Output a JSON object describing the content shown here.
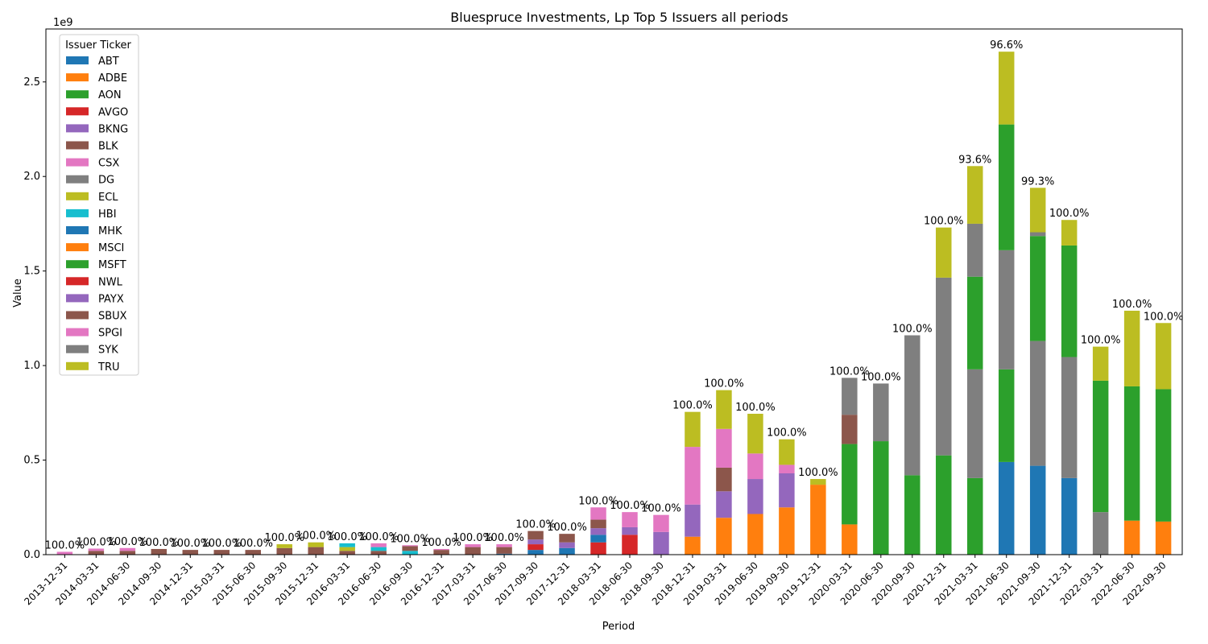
{
  "chart_data": {
    "type": "bar",
    "stacked": true,
    "title": "Bluespruce Investments, Lp Top 5 Issuers all periods",
    "xlabel": "Period",
    "ylabel": "Value",
    "y_multiplier_label": "1e9",
    "ylim": [
      0,
      2.78
    ],
    "y_unit": "1e9",
    "y_ticks": [
      "0.0",
      "0.5",
      "1.0",
      "1.5",
      "2.0",
      "2.5"
    ],
    "y_tick_values": [
      0,
      0.5,
      1.0,
      1.5,
      2.0,
      2.5
    ],
    "legend_title": "Issuer Ticker",
    "legend_position": "upper-left",
    "grid": false,
    "series_names": [
      "ABT",
      "ADBE",
      "AON",
      "AVGO",
      "BKNG",
      "BLK",
      "CSX",
      "DG",
      "ECL",
      "HBI",
      "MHK",
      "MSCI",
      "MSFT",
      "NWL",
      "PAYX",
      "SBUX",
      "SPGI",
      "SYK",
      "TRU"
    ],
    "colors": [
      "#1f77b4",
      "#ff7f0e",
      "#2ca02c",
      "#d62728",
      "#9467bd",
      "#8c564b",
      "#e377c2",
      "#7f7f7f",
      "#bcbd22",
      "#17becf",
      "#1f77b4",
      "#ff7f0e",
      "#2ca02c",
      "#d62728",
      "#9467bd",
      "#8c564b",
      "#e377c2",
      "#7f7f7f",
      "#bcbd22"
    ],
    "categories": [
      "2013-12-31",
      "2014-03-31",
      "2014-06-30",
      "2014-09-30",
      "2014-12-31",
      "2015-03-31",
      "2015-06-30",
      "2015-09-30",
      "2015-12-31",
      "2016-03-31",
      "2016-06-30",
      "2016-09-30",
      "2016-12-31",
      "2017-03-31",
      "2017-06-30",
      "2017-09-30",
      "2017-12-31",
      "2018-03-31",
      "2018-06-30",
      "2018-09-30",
      "2018-12-31",
      "2019-03-31",
      "2019-06-30",
      "2019-09-30",
      "2019-12-31",
      "2020-03-31",
      "2020-06-30",
      "2020-09-30",
      "2020-12-31",
      "2021-03-31",
      "2021-06-30",
      "2021-09-30",
      "2021-12-31",
      "2022-03-31",
      "2022-06-30",
      "2022-09-30"
    ],
    "bar_labels": [
      "100.0%",
      "100.0%",
      "100.0%",
      "100.0%",
      "100.0%",
      "100.0%",
      "100.0%",
      "100.0%",
      "100.0%",
      "100.0%",
      "100.0%",
      "100.0%",
      "100.0%",
      "100.0%",
      "100.0%",
      "100.0%",
      "100.0%",
      "100.0%",
      "100.0%",
      "100.0%",
      "100.0%",
      "100.0%",
      "100.0%",
      "100.0%",
      "100.0%",
      "100.0%",
      "100.0%",
      "100.0%",
      "100.0%",
      "93.6%",
      "96.6%",
      "99.3%",
      "100.0%",
      "100.0%",
      "100.0%",
      "100.0%"
    ],
    "stacks": [
      [
        [
          "CSX",
          0.015
        ]
      ],
      [
        [
          "BLK",
          0.02
        ],
        [
          "CSX",
          0.012
        ]
      ],
      [
        [
          "BLK",
          0.02
        ],
        [
          "CSX",
          0.015
        ]
      ],
      [
        [
          "BLK",
          0.03
        ]
      ],
      [
        [
          "BLK",
          0.025
        ]
      ],
      [
        [
          "BLK",
          0.025
        ]
      ],
      [
        [
          "BLK",
          0.025
        ]
      ],
      [
        [
          "BLK",
          0.035
        ],
        [
          "ECL",
          0.02
        ]
      ],
      [
        [
          "BLK",
          0.04
        ],
        [
          "ECL",
          0.025
        ]
      ],
      [
        [
          "BLK",
          0.02
        ],
        [
          "ECL",
          0.02
        ],
        [
          "HBI",
          0.02
        ]
      ],
      [
        [
          "BLK",
          0.02
        ],
        [
          "HBI",
          0.02
        ],
        [
          "CSX",
          0.02
        ]
      ],
      [
        [
          "HBI",
          0.02
        ],
        [
          "BLK",
          0.025
        ],
        [
          "CSX",
          0.005
        ]
      ],
      [
        [
          "BLK",
          0.025
        ],
        [
          "CSX",
          0.005
        ]
      ],
      [
        [
          "BLK",
          0.04
        ],
        [
          "CSX",
          0.015
        ]
      ],
      [
        [
          "ABT",
          0.005
        ],
        [
          "BLK",
          0.035
        ],
        [
          "CSX",
          0.015
        ]
      ],
      [
        [
          "ABT",
          0.025
        ],
        [
          "AVGO",
          0.03
        ],
        [
          "BKNG",
          0.025
        ],
        [
          "SBUX",
          0.045
        ]
      ],
      [
        [
          "ABT",
          0.035
        ],
        [
          "BKNG",
          0.03
        ],
        [
          "SBUX",
          0.045
        ]
      ],
      [
        [
          "NWL",
          0.065
        ],
        [
          "MHK",
          0.04
        ],
        [
          "PAYX",
          0.035
        ],
        [
          "SBUX",
          0.045
        ],
        [
          "SPGI",
          0.065
        ]
      ],
      [
        [
          "NWL",
          0.105
        ],
        [
          "PAYX",
          0.04
        ],
        [
          "SPGI",
          0.08
        ]
      ],
      [
        [
          "PAYX",
          0.12
        ],
        [
          "SPGI",
          0.09
        ]
      ],
      [
        [
          "MSCI",
          0.095
        ],
        [
          "PAYX",
          0.17
        ],
        [
          "SPGI",
          0.305
        ],
        [
          "TRU",
          0.185
        ]
      ],
      [
        [
          "MSCI",
          0.195
        ],
        [
          "PAYX",
          0.14
        ],
        [
          "SBUX",
          0.125
        ],
        [
          "SPGI",
          0.205
        ],
        [
          "TRU",
          0.205
        ]
      ],
      [
        [
          "MSCI",
          0.215
        ],
        [
          "PAYX",
          0.185
        ],
        [
          "SPGI",
          0.135
        ],
        [
          "TRU",
          0.21
        ]
      ],
      [
        [
          "MSCI",
          0.25
        ],
        [
          "PAYX",
          0.18
        ],
        [
          "SPGI",
          0.045
        ],
        [
          "TRU",
          0.135
        ]
      ],
      [
        [
          "MSCI",
          0.37
        ],
        [
          "TRU",
          0.03
        ]
      ],
      [
        [
          "MSCI",
          0.16
        ],
        [
          "MSFT",
          0.425
        ],
        [
          "SBUX",
          0.155
        ],
        [
          "SYK",
          0.195
        ]
      ],
      [
        [
          "MSFT",
          0.6
        ],
        [
          "SYK",
          0.305
        ]
      ],
      [
        [
          "MSFT",
          0.42
        ],
        [
          "SYK",
          0.74
        ]
      ],
      [
        [
          "MSFT",
          0.525
        ],
        [
          "SYK",
          0.94
        ],
        [
          "TRU",
          0.265
        ]
      ],
      [
        [
          "MSFT",
          0.405
        ],
        [
          "SYK",
          0.575
        ],
        [
          "MSFT",
          0.49
        ],
        [
          "SYK",
          0.28
        ],
        [
          "TRU",
          0.305
        ]
      ],
      [
        [
          "ABT",
          0.49
        ],
        [
          "MSFT",
          0.49
        ],
        [
          "SYK",
          0.63
        ],
        [
          "MSFT",
          0.665
        ],
        [
          "TRU",
          0.385
        ]
      ],
      [
        [
          "ABT",
          0.47
        ],
        [
          "SYK",
          0.66
        ],
        [
          "MSFT",
          0.555
        ],
        [
          "SYK",
          0.02
        ],
        [
          "TRU",
          0.235
        ]
      ],
      [
        [
          "ABT",
          0.405
        ],
        [
          "SYK",
          0.64
        ],
        [
          "MSFT",
          0.59
        ],
        [
          "TRU",
          0.135
        ]
      ],
      [
        [
          "SYK",
          0.225
        ],
        [
          "MSFT",
          0.695
        ],
        [
          "TRU",
          0.18
        ]
      ],
      [
        [
          "MSCI",
          0.18
        ],
        [
          "MSFT",
          0.71
        ],
        [
          "TRU",
          0.4
        ]
      ],
      [
        [
          "MSCI",
          0.175
        ],
        [
          "MSFT",
          0.7
        ],
        [
          "TRU",
          0.35
        ]
      ]
    ]
  }
}
